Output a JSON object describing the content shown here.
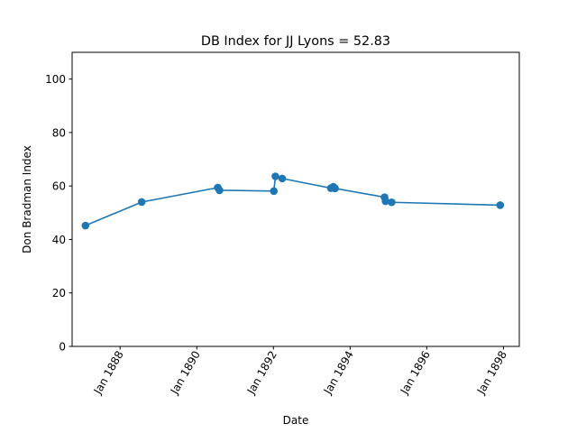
{
  "chart_data": {
    "type": "line",
    "title": "DB Index for JJ Lyons = 52.83",
    "xlabel": "Date",
    "ylabel": "Don Bradman Index",
    "xlim": [
      "1886-10-01",
      "1898-06-01"
    ],
    "ylim": [
      0,
      110
    ],
    "x_ticks": [
      {
        "date": "1888-01-01",
        "label": "Jan 1888"
      },
      {
        "date": "1890-01-01",
        "label": "Jan 1890"
      },
      {
        "date": "1892-01-01",
        "label": "Jan 1892"
      },
      {
        "date": "1894-01-01",
        "label": "Jan 1894"
      },
      {
        "date": "1896-01-01",
        "label": "Jan 1896"
      },
      {
        "date": "1898-01-01",
        "label": "Jan 1898"
      }
    ],
    "y_ticks": [
      0,
      20,
      40,
      60,
      80,
      100
    ],
    "grid": false,
    "series": [
      {
        "color": "#1f77b4",
        "points": [
          {
            "x": "1887-02-05",
            "y": 45.2
          },
          {
            "x": "1888-07-25",
            "y": 54.0
          },
          {
            "x": "1890-07-20",
            "y": 59.4
          },
          {
            "x": "1890-08-05",
            "y": 58.4
          },
          {
            "x": "1892-01-05",
            "y": 58.1
          },
          {
            "x": "1892-01-20",
            "y": 63.6
          },
          {
            "x": "1892-03-25",
            "y": 62.8
          },
          {
            "x": "1893-07-01",
            "y": 59.2
          },
          {
            "x": "1893-07-25",
            "y": 59.7
          },
          {
            "x": "1893-08-10",
            "y": 59.1
          },
          {
            "x": "1894-11-25",
            "y": 55.8
          },
          {
            "x": "1894-12-05",
            "y": 54.3
          },
          {
            "x": "1895-02-01",
            "y": 53.9
          },
          {
            "x": "1897-12-01",
            "y": 52.83
          }
        ]
      }
    ]
  }
}
